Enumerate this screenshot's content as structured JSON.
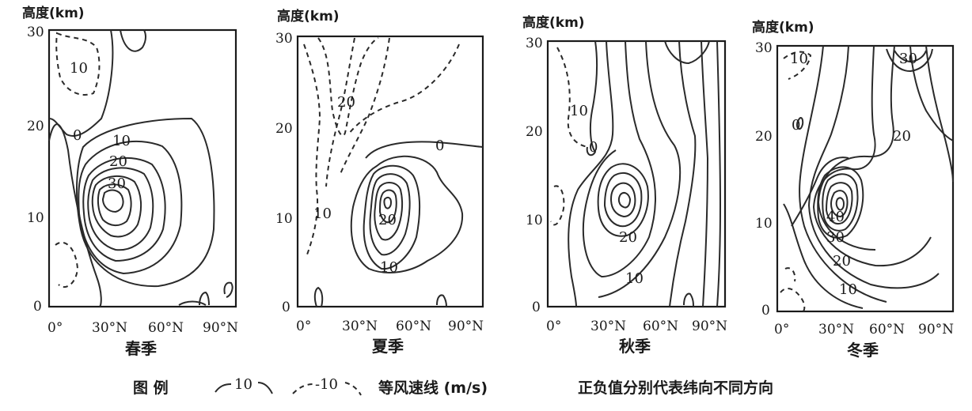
{
  "y_axis_label": "高度(km)",
  "legend": {
    "title": "图 例",
    "solid_sample_value": "10",
    "dashed_sample_value": "-10",
    "description": "等风速线 (m/s)",
    "note": "正负值分别代表纬向不同方向"
  },
  "panels": [
    {
      "season": "春季",
      "y_ticks": [
        "30",
        "20",
        "10",
        "0"
      ],
      "x_ticks": [
        "0°",
        "30°N",
        "60°N",
        "90°N"
      ],
      "contour_labels": [
        "10",
        "0",
        "10",
        "20",
        "30"
      ]
    },
    {
      "season": "夏季",
      "y_ticks": [
        "30",
        "20",
        "10",
        "0"
      ],
      "x_ticks": [
        "0°",
        "30°N",
        "60°N",
        "90°N"
      ],
      "contour_labels": [
        "20",
        "0",
        "10",
        "20",
        "10"
      ]
    },
    {
      "season": "秋季",
      "y_ticks": [
        "30",
        "20",
        "10",
        "0"
      ],
      "x_ticks": [
        "0°",
        "30°N",
        "60°N",
        "90°N"
      ],
      "contour_labels": [
        "10",
        "0",
        "20",
        "10"
      ]
    },
    {
      "season": "冬季",
      "y_ticks": [
        "30",
        "20",
        "10",
        "0"
      ],
      "x_ticks": [
        "0°",
        "30°N",
        "60°N",
        "90°N"
      ],
      "contour_labels": [
        "10",
        "30",
        "20",
        "0",
        "40",
        "30",
        "20",
        "10"
      ]
    }
  ]
}
